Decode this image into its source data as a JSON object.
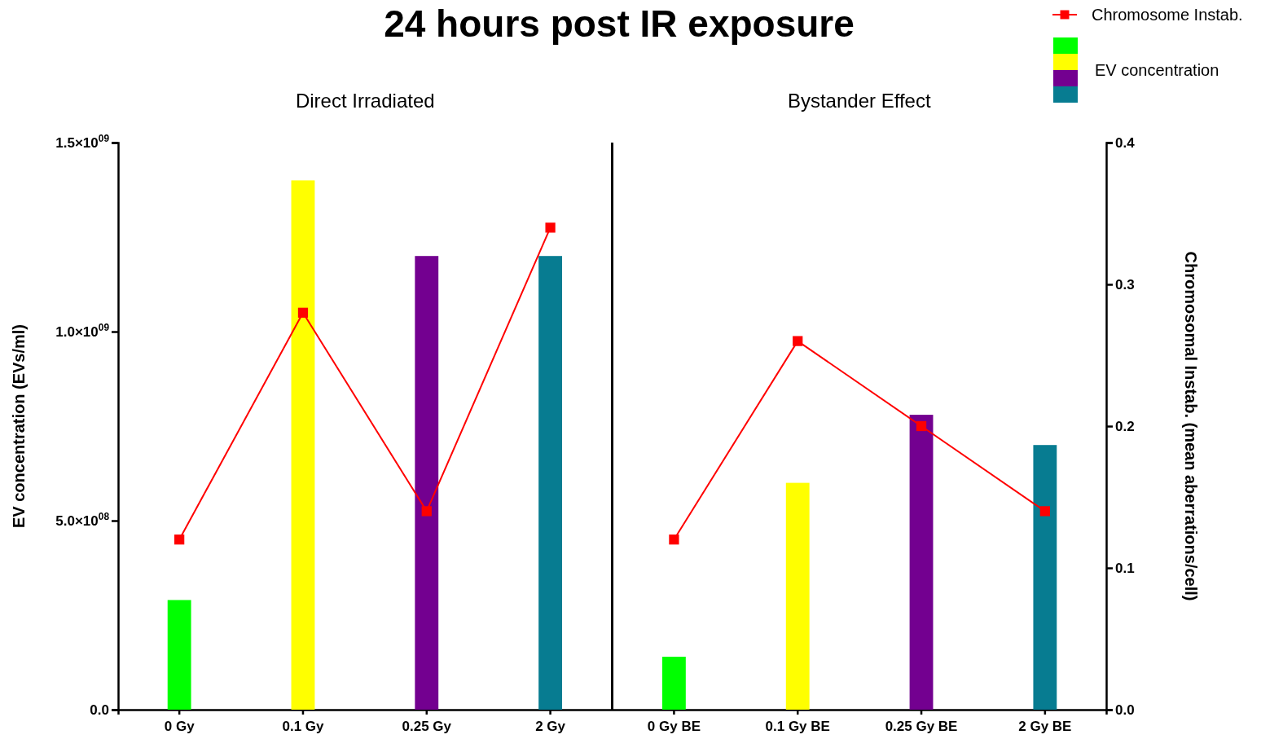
{
  "chart_data": {
    "type": "bar",
    "title": "24 hours post IR exposure",
    "annotations": [
      "Direct Irradiated",
      "Bystander Effect"
    ],
    "categories": [
      "0 Gy",
      "0.1 Gy",
      "0.25 Gy",
      "2 Gy",
      "0 Gy BE",
      "0.1 Gy BE",
      "0.25 Gy BE",
      "2 Gy BE"
    ],
    "ylabel": "EV concentration (EVs/ml)",
    "y2label": "Chromosomal Instab. (mean aberrations/cell)",
    "ylim": [
      0,
      1500000000
    ],
    "yticks": [
      {
        "value": 0,
        "label": "0.0"
      },
      {
        "value": 500000000,
        "label": "5.0×10$^{08}$"
      },
      {
        "value": 1000000000,
        "label": "1.0×10$^{09}$"
      },
      {
        "value": 1500000000,
        "label": "1.5×10$^{09}$"
      }
    ],
    "y2lim": [
      0,
      0.4
    ],
    "y2ticks": [
      {
        "value": 0,
        "label": "0.0"
      },
      0.1,
      0.2,
      0.3,
      0.4
    ],
    "marker": "square",
    "legend": "top right",
    "series": [
      {
        "name": "EV concentration",
        "colors": [
          "#00ff00",
          "#ffff00",
          "#730090",
          "#077c91",
          "#00ff00",
          "#ffff00",
          "#730090",
          "#077c91"
        ],
        "values": [
          290000000,
          1400000000,
          1200000000,
          1200000000,
          140000000,
          600000000,
          780000000,
          700000000
        ]
      },
      {
        "type": "line",
        "name": "Chromosome Instab.",
        "color": "#ff0000",
        "axis": "y2",
        "values": [
          0.12,
          0.28,
          0.14,
          0.34,
          null,
          null,
          null,
          null
        ]
      },
      {
        "type": "line",
        "color": "#ff0000",
        "axis": "y2",
        "values": [
          null,
          null,
          null,
          null,
          0.12,
          0.26,
          0.2,
          0.14
        ]
      }
    ]
  }
}
